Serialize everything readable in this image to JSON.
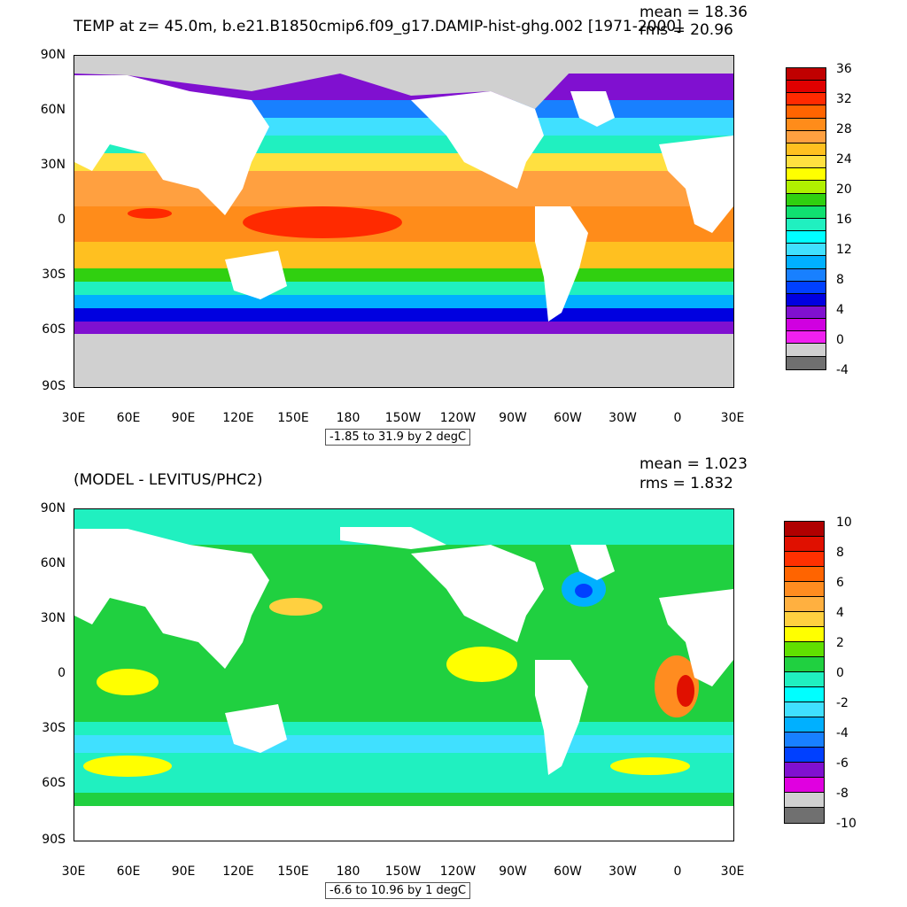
{
  "panels": [
    {
      "title": "TEMP at z=  45.0m, b.e21.B1850cmip6.f09_g17.DAMIP-hist-ghg.002 [1971-2000]",
      "mean_text": "mean = 18.36",
      "rms_text": "rms = 20.96",
      "range_text": "-1.85 to 31.9 by 2 degC",
      "y_ticks": [
        "90N",
        "60N",
        "30N",
        "0",
        "30S",
        "60S",
        "90S"
      ],
      "x_ticks": [
        "30E",
        "60E",
        "90E",
        "120E",
        "150E",
        "180",
        "150W",
        "120W",
        "90W",
        "60W",
        "30W",
        "0",
        "30E"
      ],
      "colorbar_labels": [
        "36",
        "32",
        "28",
        "24",
        "20",
        "16",
        "12",
        "8",
        "4",
        "0",
        "-4"
      ],
      "colorbar_colors": [
        "#c00000",
        "#e00000",
        "#ff2a00",
        "#ff6400",
        "#ff8c1a",
        "#ffa040",
        "#ffc020",
        "#ffe040",
        "#ffff00",
        "#b0f000",
        "#30d010",
        "#10e070",
        "#20f0c0",
        "#00ffff",
        "#40e0ff",
        "#00b0ff",
        "#1880ff",
        "#0040ff",
        "#0000e0",
        "#8010d0",
        "#d000e0",
        "#f020f0",
        "#d0d0d0",
        "#707070"
      ],
      "land_color": "#ffffff",
      "ice_color": "#d0d0d0"
    },
    {
      "title": "(MODEL - LEVITUS/PHC2)",
      "mean_text": "mean = 1.023",
      "rms_text": "rms = 1.832",
      "range_text": "-6.6 to 10.96 by 1 degC",
      "y_ticks": [
        "90N",
        "60N",
        "30N",
        "0",
        "30S",
        "60S",
        "90S"
      ],
      "x_ticks": [
        "30E",
        "60E",
        "90E",
        "120E",
        "150E",
        "180",
        "150W",
        "120W",
        "90W",
        "60W",
        "30W",
        "0",
        "30E"
      ],
      "colorbar_labels": [
        "10",
        "8",
        "6",
        "4",
        "2",
        "0",
        "-2",
        "-4",
        "-6",
        "-8",
        "-10"
      ],
      "colorbar_colors": [
        "#b00000",
        "#e01000",
        "#ff3000",
        "#ff6400",
        "#ff8c20",
        "#ffb040",
        "#ffd040",
        "#ffff00",
        "#60e000",
        "#20d040",
        "#20f0c0",
        "#00ffff",
        "#40e0ff",
        "#00b0ff",
        "#1880ff",
        "#0040ff",
        "#8010d0",
        "#e000e0",
        "#d0d0d0",
        "#707070"
      ],
      "land_color": "#ffffff"
    }
  ]
}
